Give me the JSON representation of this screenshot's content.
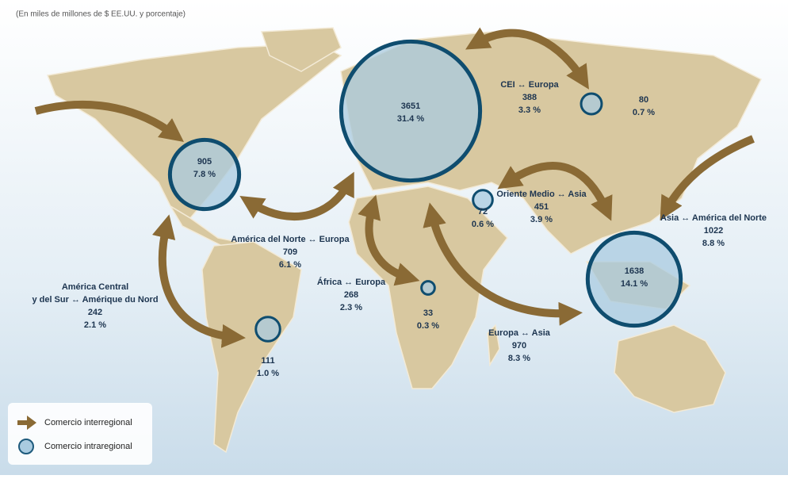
{
  "subtitle": "(En miles de millones de $ EE.UU. y porcentaje)",
  "intraregional": [
    {
      "value": 905,
      "share": "7.8 %"
    },
    {
      "value": 3651,
      "share": "31.4 %"
    },
    {
      "value": 80,
      "share": "0.7 %"
    },
    {
      "value": 72,
      "share": "0.6 %"
    },
    {
      "value": 1638,
      "share": "14.1 %"
    },
    {
      "value": 33,
      "share": "0.3 %"
    },
    {
      "value": 111,
      "share": "1.0 %"
    }
  ],
  "interregional": [
    {
      "label": [
        "CEI ↔ Europa"
      ],
      "value": 388,
      "share": "3.3 %"
    },
    {
      "label": [
        "Oriente Medio ↔ Asia"
      ],
      "value": 451,
      "share": "3.9 %"
    },
    {
      "label": [
        "Asia ↔ América del Norte"
      ],
      "value": 1022,
      "share": "8.8 %"
    },
    {
      "label": [
        "América del Norte ↔ Europa"
      ],
      "value": 709,
      "share": "6.1 %"
    },
    {
      "label": [
        "América Central",
        "y del Sur ↔ Amérique du Nord"
      ],
      "value": 242,
      "share": "2.1 %"
    },
    {
      "label": [
        "África ↔ Europa"
      ],
      "value": 268,
      "share": "2.3 %"
    },
    {
      "label": [
        "Europa ↔ Asia"
      ],
      "value": 970,
      "share": "8.3 %"
    }
  ],
  "legend": {
    "interregional": "Comercio interregional",
    "intraregional": "Comercio intraregional"
  }
}
